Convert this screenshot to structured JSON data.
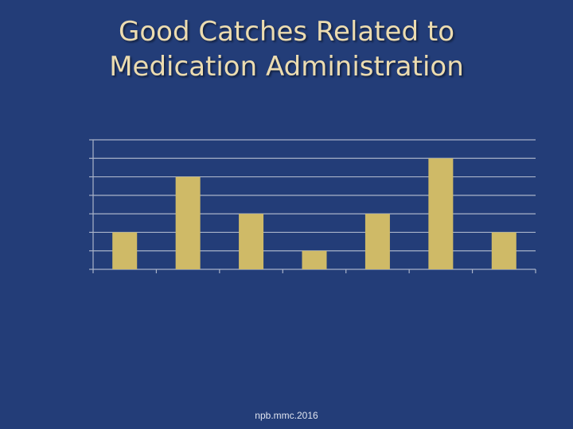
{
  "slide": {
    "title_line1": "Good Catches Related to",
    "title_line2": "Medication Administration",
    "footer": "npb.mmc.2016"
  },
  "colors": {
    "background": "#233d78",
    "title": "#ecdcb0",
    "bar": "#cfba67",
    "grid": "#a9b3c9"
  },
  "chart_data": {
    "type": "bar",
    "title": "",
    "xlabel": "",
    "ylabel": "",
    "categories": [
      "",
      "",
      "",
      "",
      "",
      "",
      ""
    ],
    "values": [
      2,
      5,
      3,
      1,
      3,
      6,
      2
    ],
    "ylim": [
      0,
      7
    ],
    "grid": true,
    "legend": "none"
  }
}
